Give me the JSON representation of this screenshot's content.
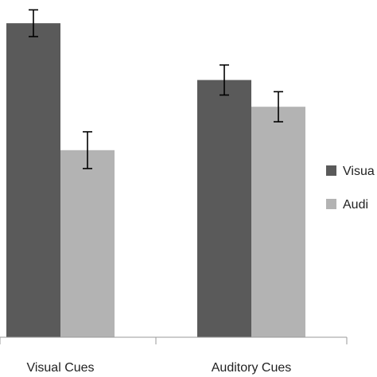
{
  "chart_data": {
    "type": "bar",
    "title": "",
    "xlabel": "",
    "ylabel": "",
    "categories": [
      "Visual Cues",
      "Auditory Cues"
    ],
    "series": [
      {
        "name": "Visua",
        "color": "#5a5a5a",
        "values": [
          0.94,
          0.77
        ],
        "errors": [
          0.04,
          0.045
        ]
      },
      {
        "name": "Audi",
        "color": "#b3b3b3",
        "values": [
          0.56,
          0.69
        ],
        "errors": [
          0.055,
          0.045
        ]
      }
    ],
    "ylim": [
      0,
      1
    ],
    "grid": false,
    "legend": "right"
  }
}
